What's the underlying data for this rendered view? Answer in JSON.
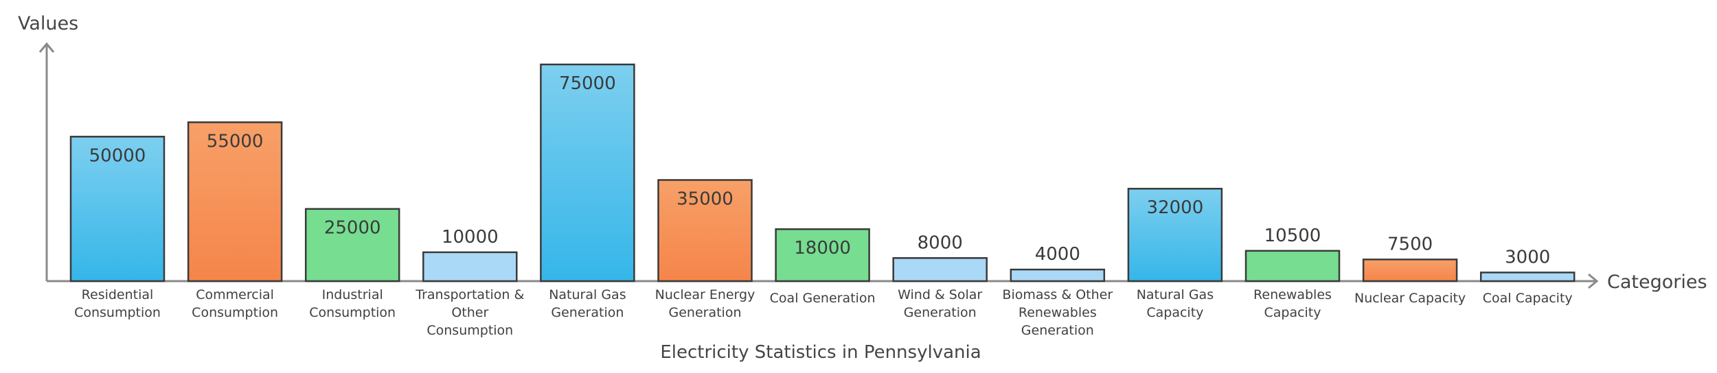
{
  "chart_data": {
    "type": "bar",
    "title": "Electricity Statistics in Pennsylvania",
    "xlabel": "Categories",
    "ylabel": "Values",
    "ylim": [
      0,
      75000
    ],
    "grid": false,
    "legend": "none",
    "categories": [
      "Residential\nConsumption",
      "Commercial\nConsumption",
      "Industrial\nConsumption",
      "Transportation &\nOther\nConsumption",
      "Natural Gas\nGeneration",
      "Nuclear Energy\nGeneration",
      "Coal Generation",
      "Wind & Solar\nGeneration",
      "Biomass & Other\nRenewables\nGeneration",
      "Natural Gas\nCapacity",
      "Renewables\nCapacity",
      "Nuclear Capacity",
      "Coal Capacity"
    ],
    "values": [
      50000,
      55000,
      25000,
      10000,
      75000,
      35000,
      18000,
      8000,
      4000,
      32000,
      10500,
      7500,
      3000
    ],
    "value_labels": [
      "50000",
      "55000",
      "25000",
      "10000",
      "75000",
      "35000",
      "18000",
      "8000",
      "4000",
      "32000",
      "10500",
      "7500",
      "3000"
    ],
    "bar_colors": [
      "blue",
      "orange",
      "green",
      "lightblue",
      "blue",
      "orange",
      "green",
      "lightblue",
      "lightblue",
      "blue",
      "green",
      "orange",
      "lightblue"
    ]
  },
  "colors": {
    "blue_top": "#7dcfef",
    "blue_bottom": "#35b6e9",
    "orange_top": "#f7a068",
    "orange_bottom": "#f5854a",
    "green": "#76dd91",
    "lightblue": "#aad9f7",
    "bar_stroke": "#3a3a3a",
    "axis": "#8a8a8a"
  }
}
